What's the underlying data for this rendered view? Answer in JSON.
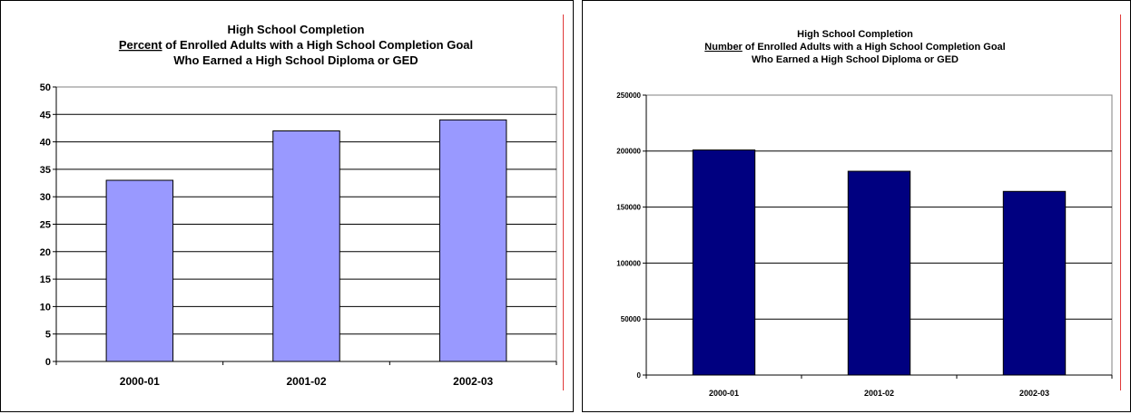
{
  "chart_data": [
    {
      "type": "bar",
      "title": [
        "High School Completion",
        "Percent of Enrolled Adults with a High School Completion Goal",
        "Who Earned a High School Diploma or GED"
      ],
      "title_underlined_word": "Percent",
      "categories": [
        "2000-01",
        "2001-02",
        "2002-03"
      ],
      "values": [
        33,
        42,
        44
      ],
      "ylim": [
        0,
        50
      ],
      "yticks": [
        0,
        5,
        10,
        15,
        20,
        25,
        30,
        35,
        40,
        45,
        50
      ],
      "xlabel": "",
      "ylabel": "",
      "grid": true,
      "bar_color": "#9999ff",
      "plot_bg": "#ffffff"
    },
    {
      "type": "bar",
      "title": [
        "High School Completion",
        "Number of Enrolled Adults with a High School Completion Goal",
        "Who Earned a High School Diploma or GED"
      ],
      "title_underlined_word": "Number",
      "categories": [
        "2000-01",
        "2001-02",
        "2002-03"
      ],
      "values": [
        201000,
        182000,
        164000
      ],
      "ylim": [
        0,
        250000
      ],
      "yticks": [
        0,
        50000,
        100000,
        150000,
        200000,
        250000
      ],
      "xlabel": "",
      "ylabel": "",
      "grid": true,
      "bar_color": "#000080",
      "plot_bg": "#ffffff"
    }
  ]
}
